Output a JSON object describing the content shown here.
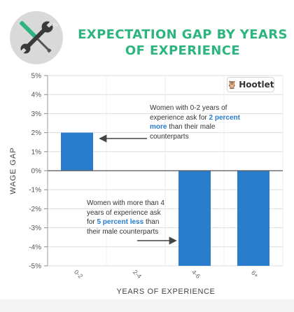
{
  "header": {
    "title": "EXPECTATION GAP BY YEARS OF EXPERIENCE",
    "logo_icon": "wrench-screwdriver-icon"
  },
  "brand": {
    "name": "Hootlet",
    "icon": "owl-icon"
  },
  "colors": {
    "bar": "#2a7ccc",
    "title": "#2cb57e",
    "highlight": "#2a7ccc"
  },
  "chart_data": {
    "type": "bar",
    "title": "EXPECTATION GAP BY YEARS OF EXPERIENCE",
    "xlabel": "YEARS OF EXPERIENCE",
    "ylabel": "WAGE GAP",
    "categories": [
      "0-2",
      "2-4",
      "4-6",
      "6+"
    ],
    "values": [
      2,
      0,
      -5,
      -5
    ],
    "ylim": [
      -5,
      5
    ],
    "yticks": [
      5,
      4,
      3,
      2,
      1,
      0,
      -1,
      -2,
      -3,
      -4,
      -5
    ],
    "ytick_labels": [
      "5%",
      "4%",
      "3%",
      "2%",
      "1%",
      "0%",
      "-1%",
      "-2%",
      "-3%",
      "-4%",
      "-5%"
    ],
    "grid": true,
    "annotations": [
      {
        "target": "0-2",
        "before": "Women with 0-2 years of experience ask for",
        "highlight": "2 percent more",
        "after": "than their male counterparts"
      },
      {
        "target": "4-6",
        "before": "Women with more than 4 years of experience ask for",
        "highlight": "5 percent less",
        "after": "than their male counterparts"
      }
    ]
  }
}
